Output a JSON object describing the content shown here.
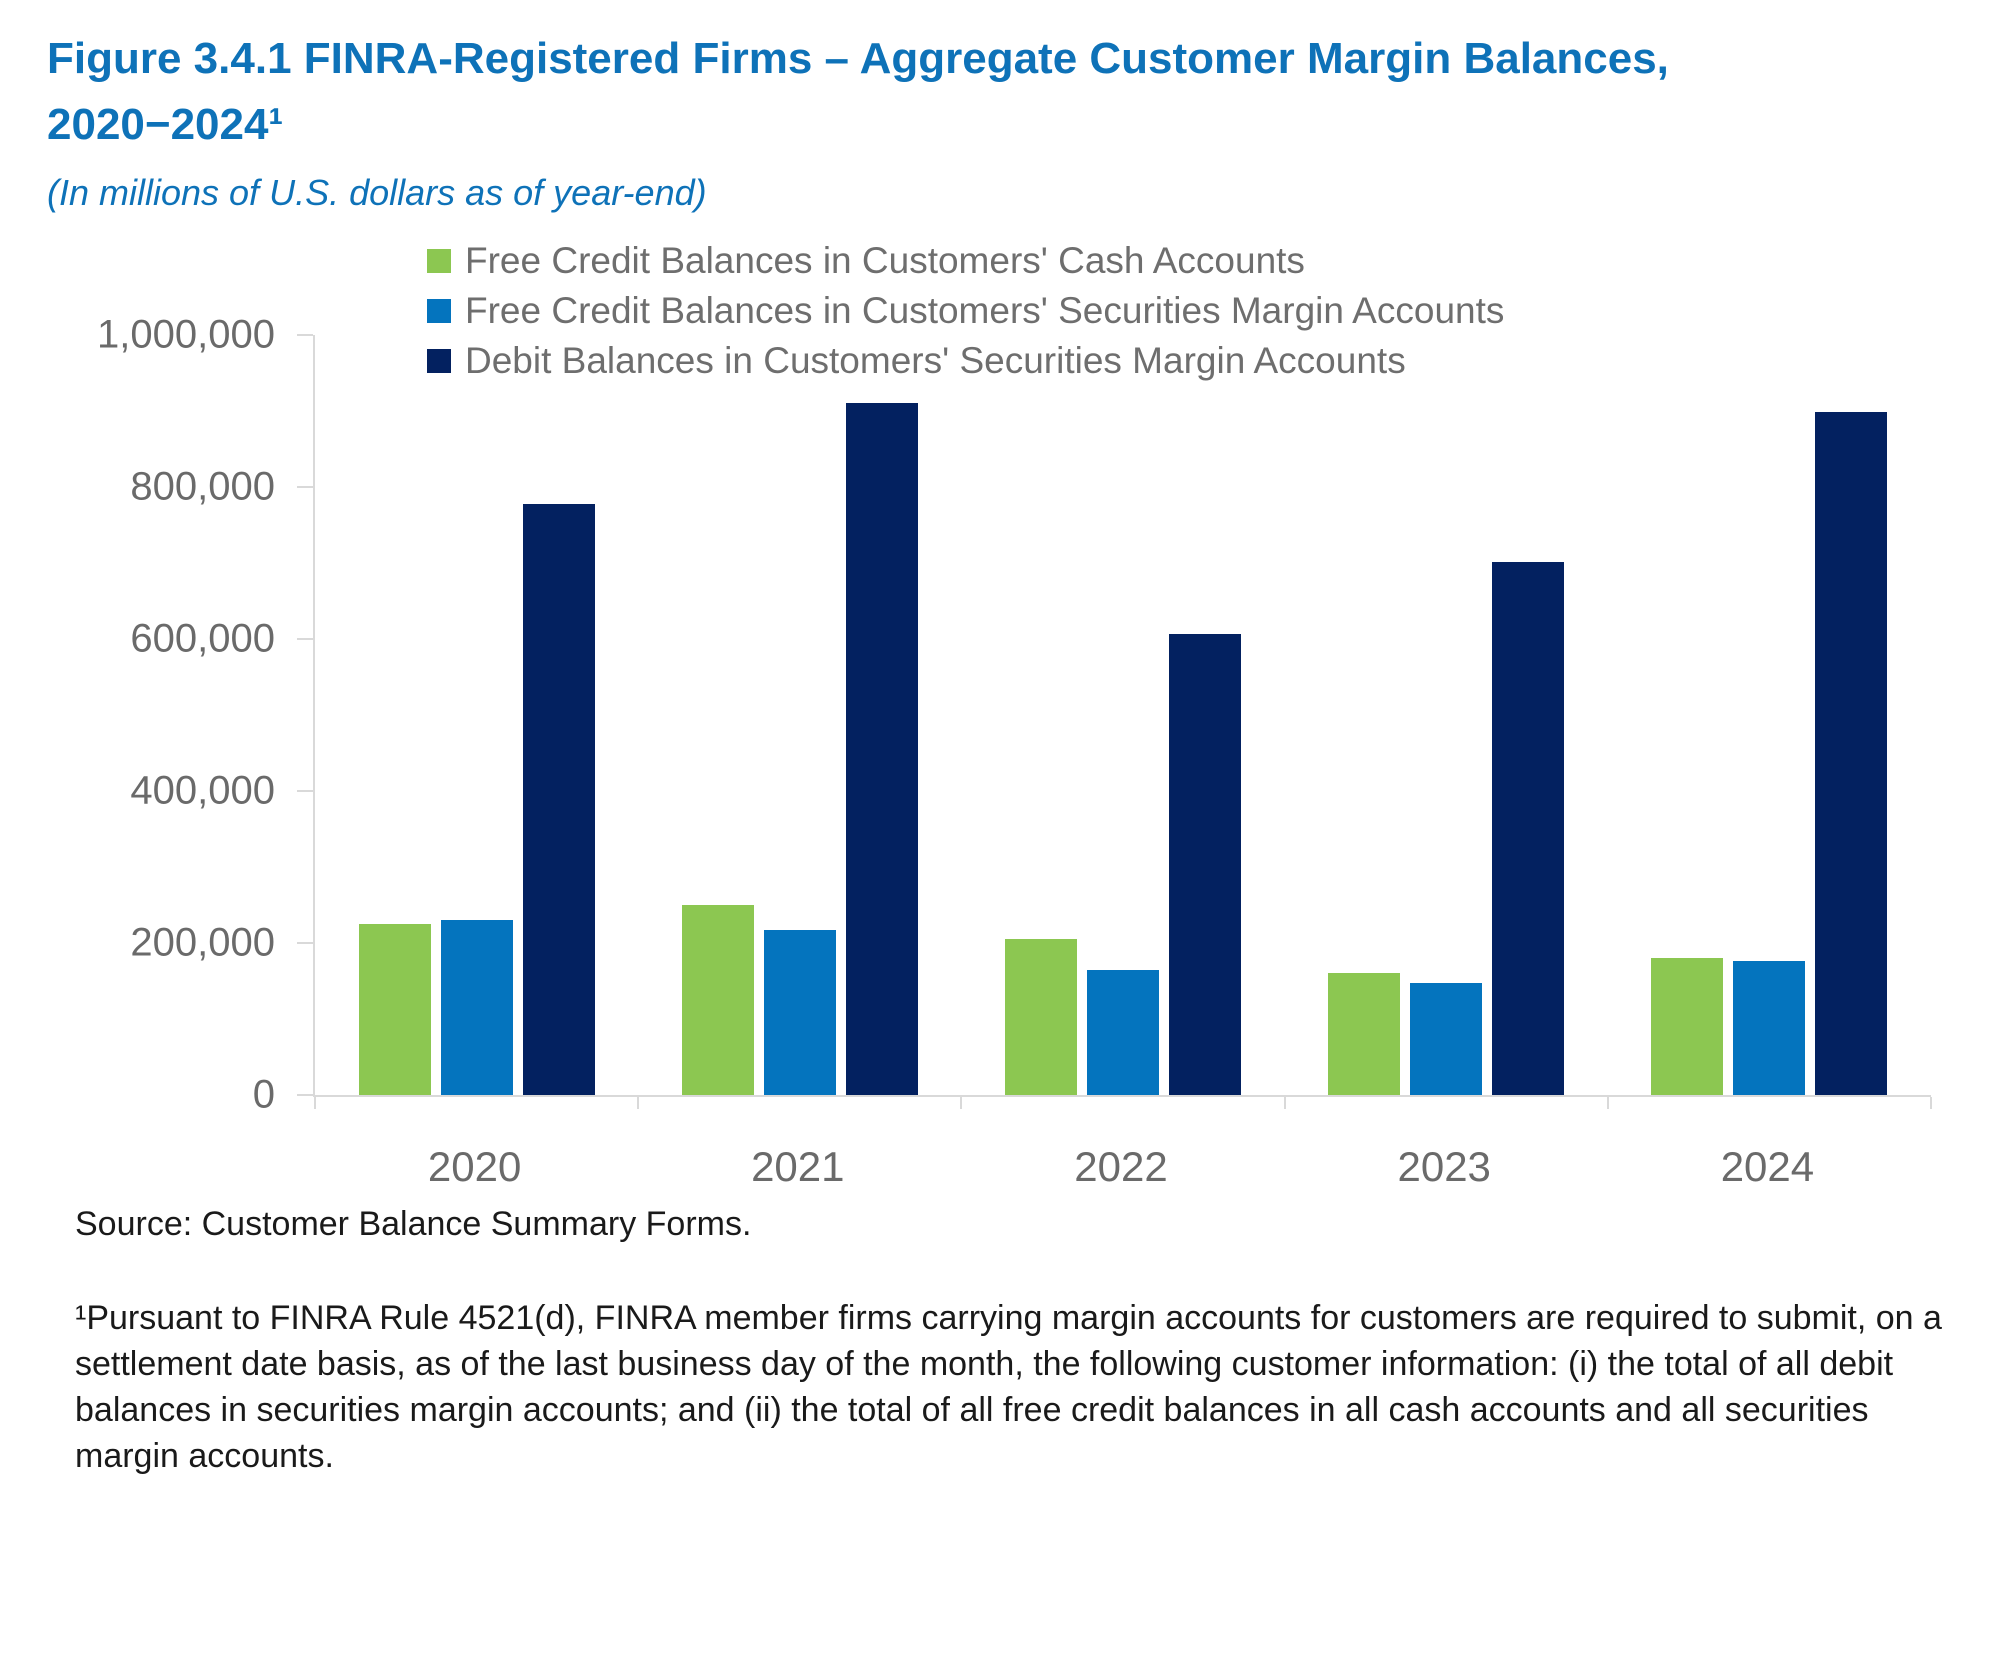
{
  "figure": {
    "title_line1": "Figure 3.4.1 FINRA-Registered Firms – Aggregate Customer Margin Balances,",
    "title_line2": "2020−2024¹",
    "subtitle": "(In millions of U.S. dollars as of year-end)",
    "source": "Source: Customer Balance Summary Forms.",
    "footnote": "¹Pursuant to FINRA Rule 4521(d), FINRA member firms carrying margin accounts for customers are required to submit, on a settlement date basis, as of the last business day of the month, the following customer information: (i) the total of all debit balances in securities margin accounts; and (ii) the total of all free credit balances in all cash accounts and all securities margin accounts."
  },
  "colors": {
    "title_blue": "#0e72b8",
    "legend_text": "#6e6e6e",
    "axis_text": "#6a6a6a",
    "axis_line": "#d9d9d9",
    "body_text": "#1a1a1a"
  },
  "chart_data": {
    "type": "bar",
    "title": "FINRA-Registered Firms – Aggregate Customer Margin Balances, 2020–2024",
    "subtitle": "In millions of U.S. dollars as of year-end",
    "xlabel": "",
    "ylabel": "",
    "categories": [
      "2020",
      "2021",
      "2022",
      "2023",
      "2024"
    ],
    "series": [
      {
        "name": "Free Credit Balances in Customers' Cash Accounts",
        "color": "#8cc751",
        "values": [
          225000,
          250000,
          205000,
          160000,
          180000
        ]
      },
      {
        "name": "Free Credit Balances in Customers' Securities Margin Accounts",
        "color": "#0474be",
        "values": [
          230000,
          217000,
          165000,
          148000,
          176000
        ]
      },
      {
        "name": "Debit Balances in Customers' Securities Margin Accounts",
        "color": "#032160",
        "values": [
          778000,
          910000,
          607000,
          701000,
          899000
        ]
      }
    ],
    "ylim": [
      0,
      1000000
    ],
    "yticks": [
      {
        "value": 0,
        "label": "0"
      },
      {
        "value": 200000,
        "label": "200,000"
      },
      {
        "value": 400000,
        "label": "400,000"
      },
      {
        "value": 600000,
        "label": "600,000"
      },
      {
        "value": 800000,
        "label": "800,000"
      },
      {
        "value": 1000000,
        "label": "1,000,000"
      }
    ],
    "grid": false,
    "legend_position": "top"
  }
}
